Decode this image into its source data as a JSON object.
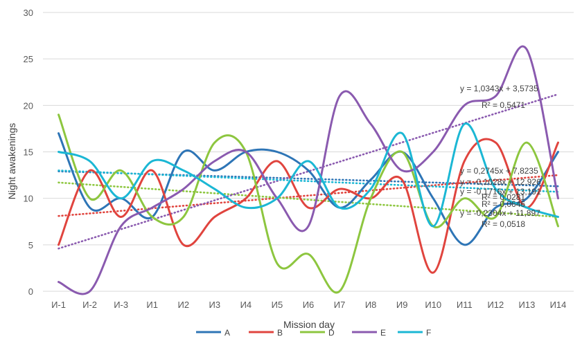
{
  "chart_data": {
    "type": "line",
    "title": "",
    "xlabel": "Mission day",
    "ylabel": "Night awakenings",
    "ylim": [
      0,
      30
    ],
    "y_ticks": [
      0,
      5,
      10,
      15,
      20,
      25,
      30
    ],
    "grid": "horizontal",
    "legend": "bottom",
    "smooth": true,
    "categories": [
      "И-1",
      "И-2",
      "И-3",
      "И1",
      "И2",
      "И3",
      "И4",
      "И5",
      "И6",
      "И7",
      "И8",
      "И9",
      "И10",
      "И11",
      "И12",
      "И13",
      "И14"
    ],
    "series": [
      {
        "name": "A",
        "color": "#2E75B6",
        "values": [
          17,
          9,
          10,
          8,
          15,
          13,
          15,
          15,
          13,
          9,
          12,
          15,
          10,
          5,
          9,
          10,
          15
        ]
      },
      {
        "name": "B",
        "color": "#E0443E",
        "values": [
          5,
          13,
          8,
          13,
          5,
          8,
          10,
          14,
          9,
          11,
          10,
          12,
          2,
          14,
          16,
          9,
          16
        ]
      },
      {
        "name": "D",
        "color": "#8DC63F",
        "values": [
          19,
          10,
          13,
          8,
          8,
          16,
          15,
          3,
          4,
          0,
          10,
          15,
          7,
          10,
          8,
          16,
          7
        ]
      },
      {
        "name": "E",
        "color": "#8A5AAF",
        "values": [
          1,
          0,
          7,
          9,
          11,
          14,
          15,
          10,
          7,
          21,
          18,
          13,
          15,
          20,
          21,
          26,
          10
        ]
      },
      {
        "name": "F",
        "color": "#1BB7D4",
        "values": [
          15,
          14,
          10,
          14,
          13,
          11,
          9,
          10,
          14,
          9,
          11,
          17,
          7,
          18,
          11,
          9,
          8
        ]
      }
    ],
    "trendlines": [
      {
        "series": "A",
        "start": 12.9,
        "end": 11.3
      },
      {
        "series": "B",
        "start": 8.1,
        "end": 12.5
      },
      {
        "series": "D",
        "start": 11.7,
        "end": 8.0
      },
      {
        "series": "E",
        "start": 4.6,
        "end": 21.2
      },
      {
        "series": "F",
        "start": 13.0,
        "end": 10.7
      }
    ],
    "annotations": [
      "y = 1,0343x + 3,5735",
      "R² = 0,5471",
      "y = 0,2745x + 7,8235",
      "y = -0,1028x + 12,926",
      "y = -0,1716x + 13,191",
      "R² = 0,0281",
      "R² = 0,0646",
      "y = -0,2304x + 11,897",
      "R² = 0,0518"
    ]
  }
}
